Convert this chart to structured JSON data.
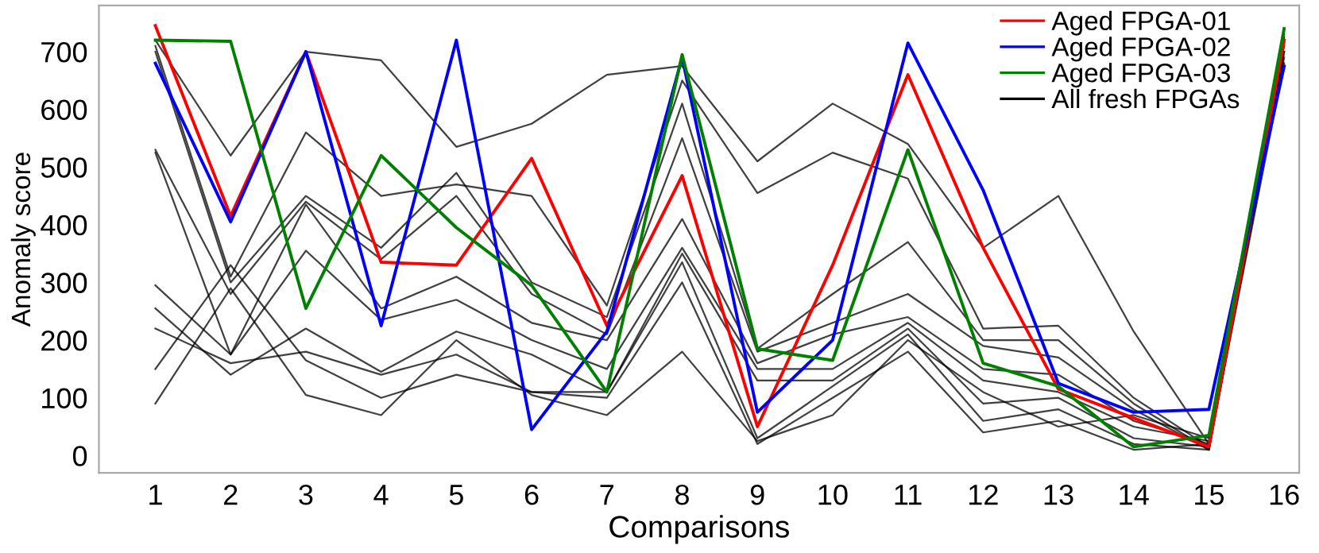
{
  "chart_data": {
    "type": "line",
    "xlabel": "Comparisons",
    "ylabel": "Anomaly score",
    "categories": [
      "1",
      "2",
      "3",
      "4",
      "5",
      "6",
      "7",
      "8",
      "9",
      "10",
      "11",
      "12",
      "13",
      "14",
      "15",
      "16"
    ],
    "ylim": [
      -30,
      780
    ],
    "yticks": [
      0,
      100,
      200,
      300,
      400,
      500,
      600,
      700
    ],
    "grid": false,
    "legend": "top right",
    "marker": "none",
    "line_style": "solid",
    "series": [
      {
        "name": null,
        "color": "#000000",
        "values": [
          720,
          520,
          700,
          685,
          535,
          575,
          660,
          675,
          510,
          610,
          540,
          360,
          450,
          215,
          20,
          730
        ]
      },
      {
        "name": null,
        "color": "#000000",
        "values": [
          710,
          310,
          560,
          450,
          470,
          450,
          260,
          650,
          455,
          525,
          480,
          220,
          225,
          100,
          15,
          720
        ]
      },
      {
        "name": null,
        "color": "#000000",
        "values": [
          700,
          300,
          450,
          360,
          490,
          300,
          240,
          610,
          185,
          280,
          370,
          200,
          200,
          90,
          10,
          710
        ]
      },
      {
        "name": null,
        "color": "#000000",
        "values": [
          530,
          280,
          440,
          340,
          450,
          280,
          210,
          550,
          180,
          230,
          280,
          190,
          170,
          80,
          10,
          700
        ]
      },
      {
        "name": null,
        "color": "#000000",
        "values": [
          525,
          175,
          435,
          255,
          310,
          230,
          200,
          410,
          160,
          210,
          240,
          150,
          140,
          60,
          20,
          690
        ]
      },
      {
        "name": null,
        "color": "#000000",
        "values": [
          295,
          175,
          355,
          235,
          270,
          200,
          150,
          360,
          150,
          150,
          230,
          130,
          110,
          50,
          25,
          700
        ]
      },
      {
        "name": null,
        "color": "#000000",
        "values": [
          255,
          140,
          220,
          145,
          215,
          175,
          110,
          350,
          130,
          130,
          220,
          90,
          100,
          30,
          15,
          680
        ]
      },
      {
        "name": null,
        "color": "#000000",
        "values": [
          220,
          160,
          180,
          140,
          175,
          110,
          110,
          335,
          30,
          120,
          210,
          60,
          80,
          20,
          10,
          740
        ]
      },
      {
        "name": null,
        "color": "#000000",
        "values": [
          150,
          330,
          165,
          100,
          140,
          110,
          100,
          300,
          20,
          100,
          180,
          40,
          60,
          10,
          20,
          725
        ]
      },
      {
        "name": "All fresh FPGAs",
        "color": "#000000",
        "values": [
          90,
          290,
          105,
          70,
          200,
          105,
          70,
          180,
          25,
          70,
          200,
          110,
          50,
          70,
          30,
          715
        ]
      },
      {
        "name": "Aged FPGA-01",
        "color": "#ff0000",
        "values": [
          745,
          415,
          700,
          335,
          330,
          515,
          225,
          485,
          50,
          330,
          660,
          360,
          115,
          65,
          15,
          720
        ]
      },
      {
        "name": "Aged FPGA-02",
        "color": "#0000ff",
        "values": [
          680,
          405,
          700,
          225,
          720,
          45,
          215,
          690,
          75,
          200,
          715,
          460,
          125,
          75,
          80,
          675
        ]
      },
      {
        "name": "Aged FPGA-03",
        "color": "#008000",
        "values": [
          720,
          718,
          255,
          520,
          395,
          295,
          110,
          695,
          185,
          165,
          530,
          160,
          120,
          15,
          35,
          740
        ]
      }
    ]
  }
}
